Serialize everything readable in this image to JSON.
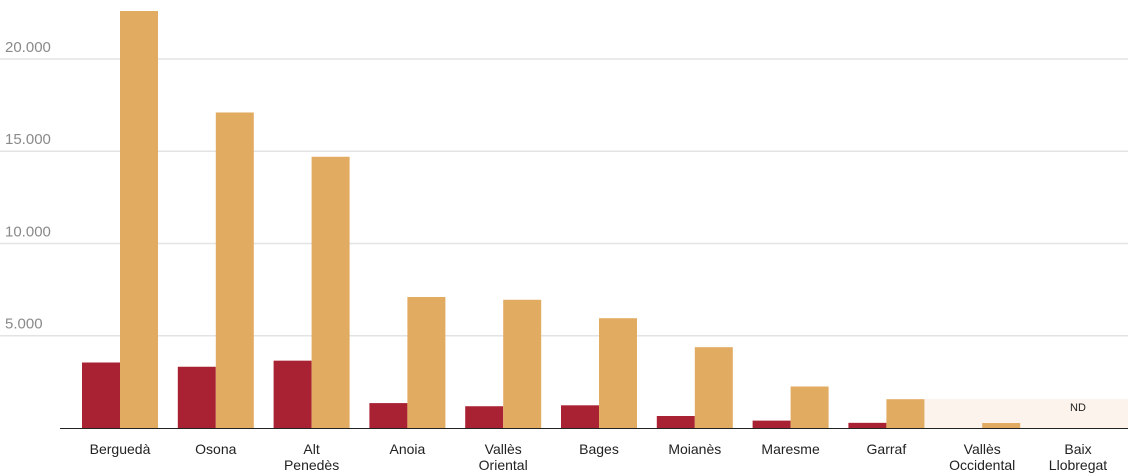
{
  "chart_data": {
    "type": "bar",
    "categories": [
      [
        "Berguedà"
      ],
      [
        "Osona"
      ],
      [
        "Alt",
        "Penedès"
      ],
      [
        "Anoia"
      ],
      [
        "Vallès",
        "Oriental"
      ],
      [
        "Bages"
      ],
      [
        "Moianès"
      ],
      [
        "Maresme"
      ],
      [
        "Garraf"
      ],
      [
        "Vallès",
        "Occidental"
      ],
      [
        "Baix",
        "Llobregat"
      ]
    ],
    "series": [
      {
        "color": "#a92234",
        "values": [
          3550,
          3320,
          3650,
          1350,
          1180,
          1230,
          650,
          400,
          280,
          0,
          0
        ]
      },
      {
        "color": "#e2ab62",
        "values": [
          22600,
          17100,
          14700,
          7100,
          6950,
          5950,
          4380,
          2250,
          1560,
          270,
          0
        ]
      }
    ],
    "ylim": [
      0,
      22600
    ],
    "yticks": [
      5000,
      10000,
      15000,
      20000
    ],
    "ytick_labels": [
      "5.000",
      "10.000",
      "15.000",
      "20.000"
    ],
    "highlight_band": {
      "from_category": 9,
      "to_category": 10,
      "color": "#fbf3ec"
    },
    "annotation": {
      "text": "ND",
      "category": 10
    },
    "grid": true,
    "legend": "none"
  }
}
